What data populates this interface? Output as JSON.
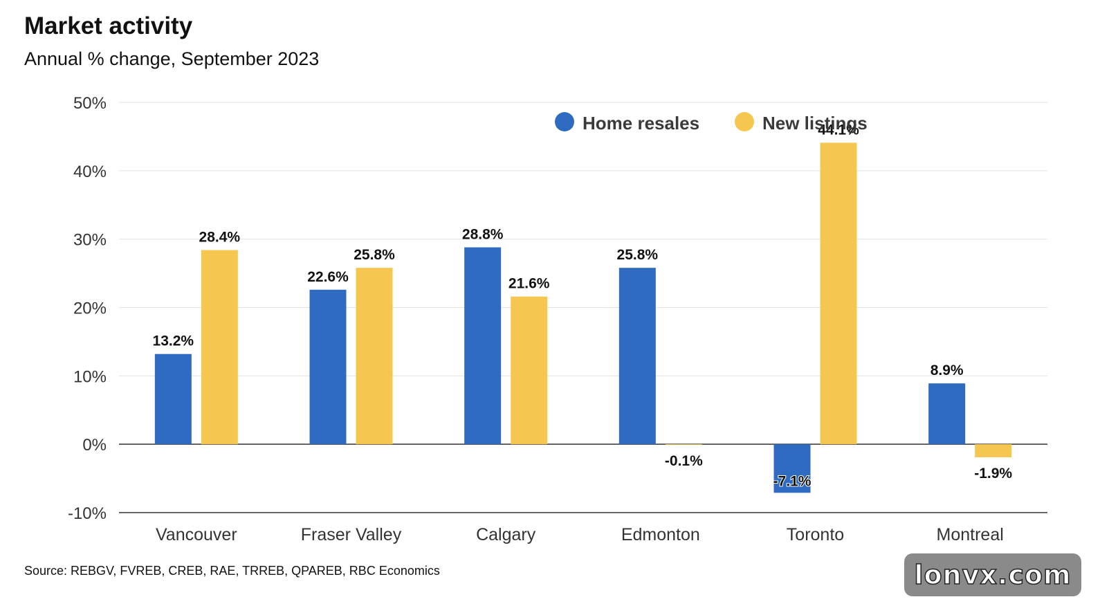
{
  "chart_data": {
    "type": "bar",
    "title": "Market activity",
    "subtitle": "Annual % change, September 2023",
    "categories": [
      "Vancouver",
      "Fraser Valley",
      "Calgary",
      "Edmonton",
      "Toronto",
      "Montreal"
    ],
    "series": [
      {
        "name": "Home resales",
        "color": "#2f6bc0",
        "values": [
          13.2,
          22.6,
          28.8,
          25.8,
          -7.1,
          8.9
        ],
        "labels": [
          "13.2%",
          "22.6%",
          "28.8%",
          "25.8%",
          "-7.1%",
          "8.9%"
        ]
      },
      {
        "name": "New listings",
        "color": "#f6c750",
        "values": [
          28.4,
          25.8,
          21.6,
          -0.1,
          44.1,
          -1.9
        ],
        "labels": [
          "28.4%",
          "25.8%",
          "21.6%",
          "-0.1%",
          "44.1%",
          "-1.9%"
        ]
      }
    ],
    "ylim": [
      -10,
      50
    ],
    "yticks": [
      -10,
      0,
      10,
      20,
      30,
      40,
      50
    ],
    "ytick_labels": [
      "-10%",
      "0%",
      "10%",
      "20%",
      "30%",
      "40%",
      "50%"
    ],
    "grid": true,
    "legend_position": "top-right",
    "source": "Source: REBGV, FVREB, CREB, RAE, TRREB, QPAREB, RBC Economics"
  },
  "watermark": "lonvx.com"
}
